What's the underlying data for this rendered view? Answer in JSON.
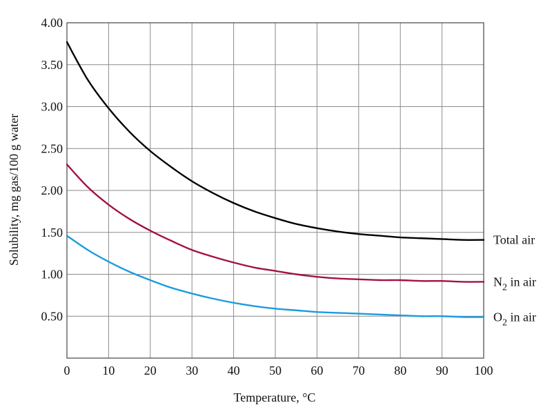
{
  "chart_data": {
    "type": "line",
    "title": "",
    "xlabel": "Temperature, °C",
    "ylabel": "Solubility, mg gas/100 g water",
    "xlim": [
      0,
      100
    ],
    "ylim": [
      0,
      4.0
    ],
    "grid": true,
    "x_ticks": [
      0,
      10,
      20,
      30,
      40,
      50,
      60,
      70,
      80,
      90,
      100
    ],
    "x_tick_labels": [
      "0",
      "10",
      "20",
      "30",
      "40",
      "50",
      "60",
      "70",
      "80",
      "90",
      "100"
    ],
    "y_ticks": [
      0.5,
      1.0,
      1.5,
      2.0,
      2.5,
      3.0,
      3.5,
      4.0
    ],
    "y_tick_labels": [
      "0.50",
      "1.00",
      "1.50",
      "2.00",
      "2.50",
      "3.00",
      "3.50",
      "4.00"
    ],
    "x": [
      0,
      5,
      10,
      15,
      20,
      25,
      30,
      35,
      40,
      45,
      50,
      55,
      60,
      65,
      70,
      75,
      80,
      85,
      90,
      95,
      100
    ],
    "series": [
      {
        "name": "Total air",
        "label_main": "Total air",
        "label_sub": "",
        "label_rest": "",
        "color": "#000000",
        "values": [
          3.77,
          3.32,
          2.98,
          2.7,
          2.47,
          2.28,
          2.11,
          1.97,
          1.85,
          1.75,
          1.67,
          1.6,
          1.55,
          1.51,
          1.48,
          1.46,
          1.44,
          1.43,
          1.42,
          1.41,
          1.41
        ]
      },
      {
        "name": "N2 in air",
        "label_main": "N",
        "label_sub": "2",
        "label_rest": " in air",
        "color": "#a3123f",
        "values": [
          2.31,
          2.04,
          1.83,
          1.66,
          1.52,
          1.4,
          1.29,
          1.21,
          1.14,
          1.08,
          1.04,
          1.0,
          0.97,
          0.95,
          0.94,
          0.93,
          0.93,
          0.92,
          0.92,
          0.91,
          0.91
        ]
      },
      {
        "name": "O2 in air",
        "label_main": "O",
        "label_sub": "2",
        "label_rest": " in air",
        "color": "#1a9be0",
        "values": [
          1.46,
          1.29,
          1.15,
          1.03,
          0.93,
          0.84,
          0.77,
          0.71,
          0.66,
          0.62,
          0.59,
          0.57,
          0.55,
          0.54,
          0.53,
          0.52,
          0.51,
          0.5,
          0.5,
          0.49,
          0.49
        ]
      }
    ]
  }
}
